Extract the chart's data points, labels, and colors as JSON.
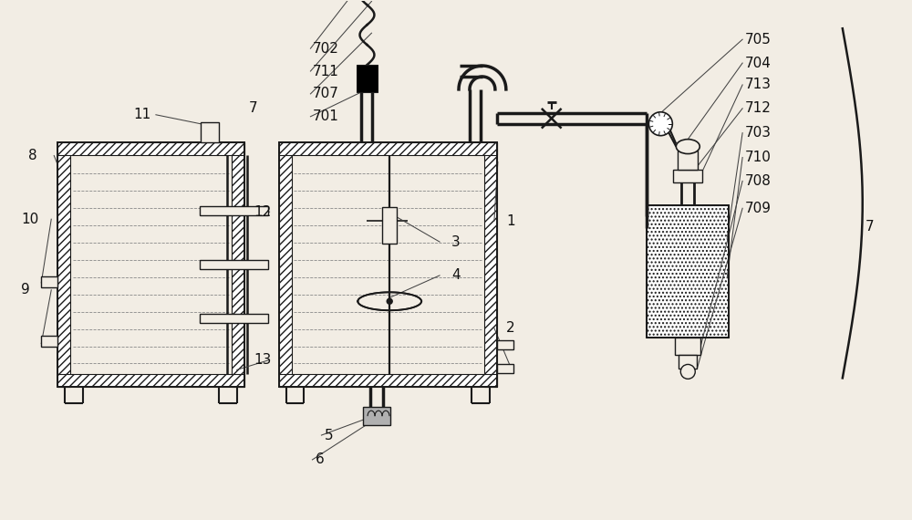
{
  "bg_color": "#f2ede4",
  "line_color": "#1a1a1a",
  "fig_width": 10.0,
  "fig_height": 5.7,
  "dpi": 100
}
